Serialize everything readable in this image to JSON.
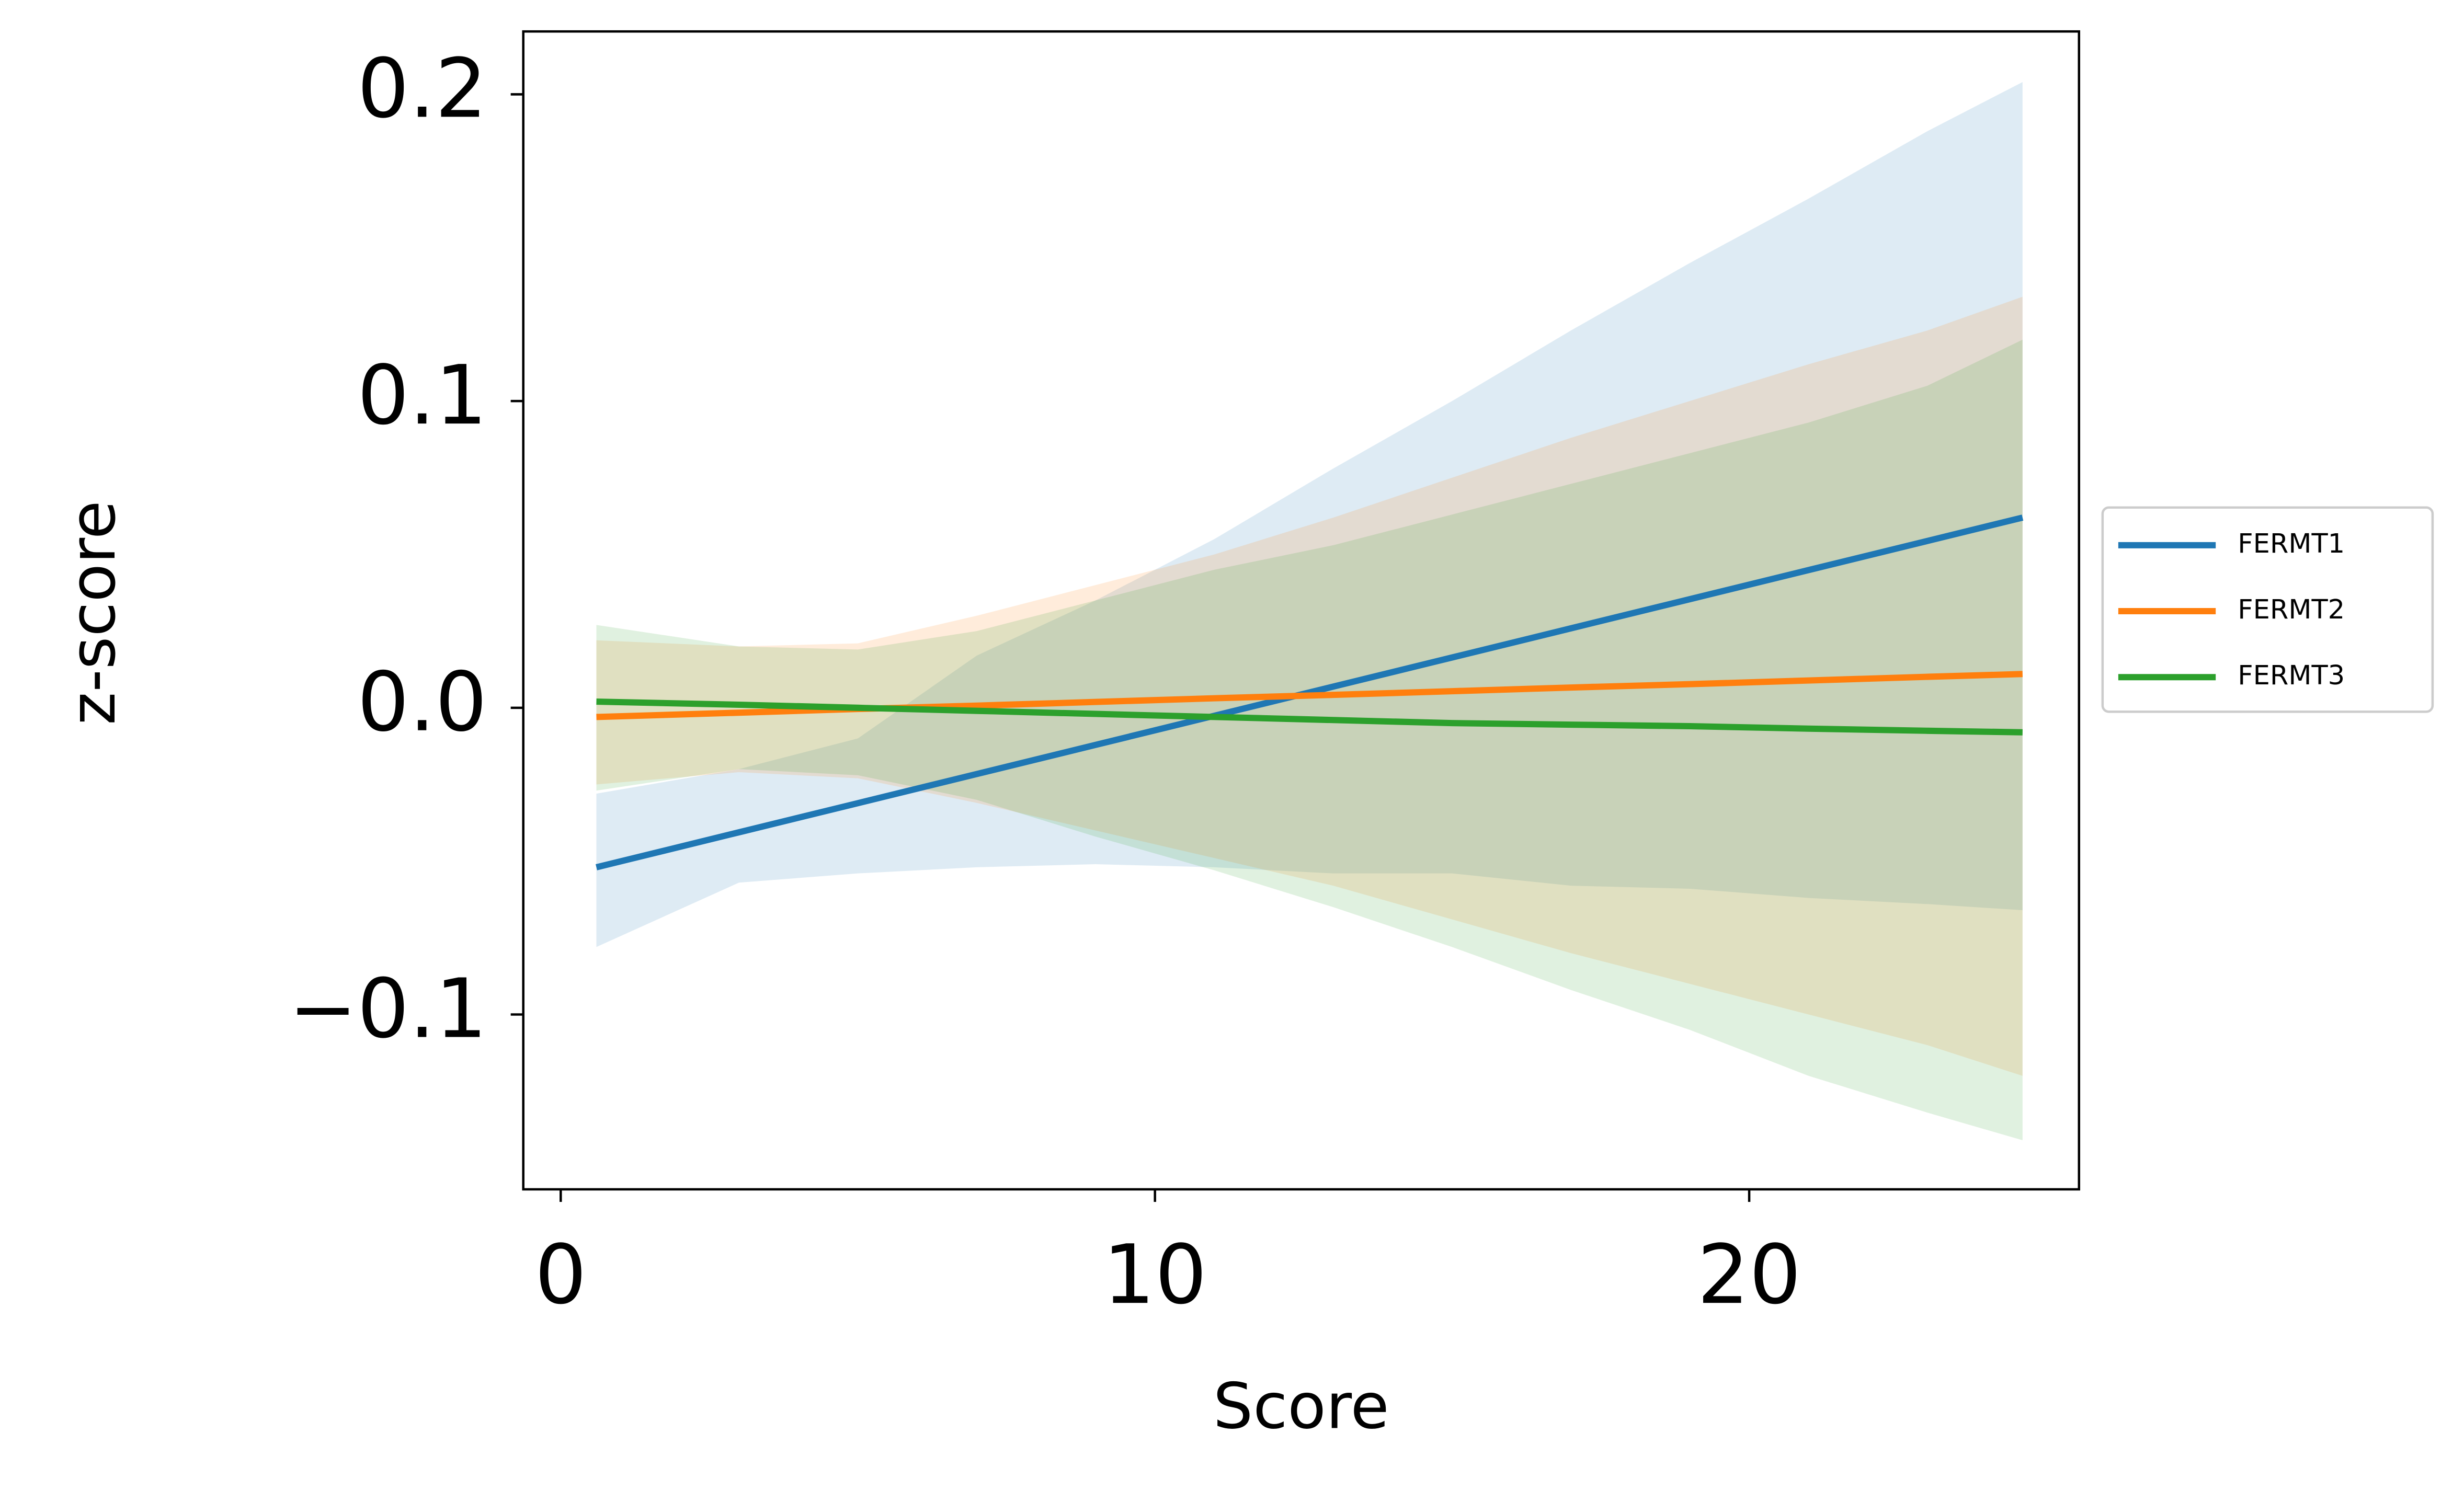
{
  "chart_data": {
    "type": "line",
    "xlabel": "Score",
    "ylabel": "z-score",
    "x": [
      0.6,
      3,
      5,
      7,
      9,
      11,
      13,
      15,
      17,
      19,
      21,
      23,
      24.6
    ],
    "series": [
      {
        "name": "FERMT1",
        "color": "#1f77b4",
        "values": [
          -0.052,
          -0.0406,
          -0.0311,
          -0.0216,
          -0.0121,
          -0.0026,
          0.0069,
          0.0164,
          0.0259,
          0.0354,
          0.0449,
          0.0544,
          0.062
        ],
        "upper": [
          -0.028,
          -0.02,
          -0.01,
          0.017,
          0.035,
          0.055,
          0.078,
          0.1,
          0.123,
          0.145,
          0.166,
          0.188,
          0.204
        ],
        "lower": [
          -0.078,
          -0.057,
          -0.054,
          -0.052,
          -0.051,
          -0.052,
          -0.054,
          -0.054,
          -0.058,
          -0.059,
          -0.062,
          -0.064,
          -0.066
        ]
      },
      {
        "name": "FERMT2",
        "color": "#ff7f0e",
        "values": [
          -0.003,
          -0.0016,
          -0.0004,
          0.0007,
          0.0019,
          0.0031,
          0.0042,
          0.0054,
          0.0066,
          0.0077,
          0.0089,
          0.0101,
          0.011
        ],
        "upper": [
          0.022,
          0.02,
          0.021,
          0.03,
          0.04,
          0.05,
          0.062,
          0.075,
          0.088,
          0.1,
          0.112,
          0.123,
          0.134
        ],
        "lower": [
          -0.025,
          -0.021,
          -0.023,
          -0.031,
          -0.04,
          -0.049,
          -0.058,
          -0.069,
          -0.08,
          -0.09,
          -0.1,
          -0.11,
          -0.12
        ]
      },
      {
        "name": "FERMT3",
        "color": "#2ca02c",
        "values": [
          0.002,
          0.001,
          0.0,
          -0.001,
          -0.002,
          -0.003,
          -0.004,
          -0.005,
          -0.0055,
          -0.006,
          -0.0068,
          -0.0075,
          -0.008
        ],
        "upper": [
          0.027,
          0.02,
          0.019,
          0.025,
          0.035,
          0.045,
          0.053,
          0.063,
          0.073,
          0.083,
          0.093,
          0.105,
          0.12
        ],
        "lower": [
          -0.027,
          -0.02,
          -0.022,
          -0.03,
          -0.042,
          -0.053,
          -0.065,
          -0.078,
          -0.092,
          -0.105,
          -0.12,
          -0.132,
          -0.141
        ]
      }
    ],
    "xlim": [
      -0.63,
      25.55
    ],
    "xticks": [
      0,
      10,
      20
    ],
    "ylim": [
      -0.157,
      0.2205
    ],
    "yticks": [
      {
        "value": -0.1,
        "label": "−0.1"
      },
      {
        "value": 0,
        "label": "0.0"
      },
      {
        "value": 0.1,
        "label": "0.1"
      },
      {
        "value": 0.2,
        "label": "0.2"
      }
    ],
    "band_opacity": 0.15,
    "legend": "right"
  }
}
